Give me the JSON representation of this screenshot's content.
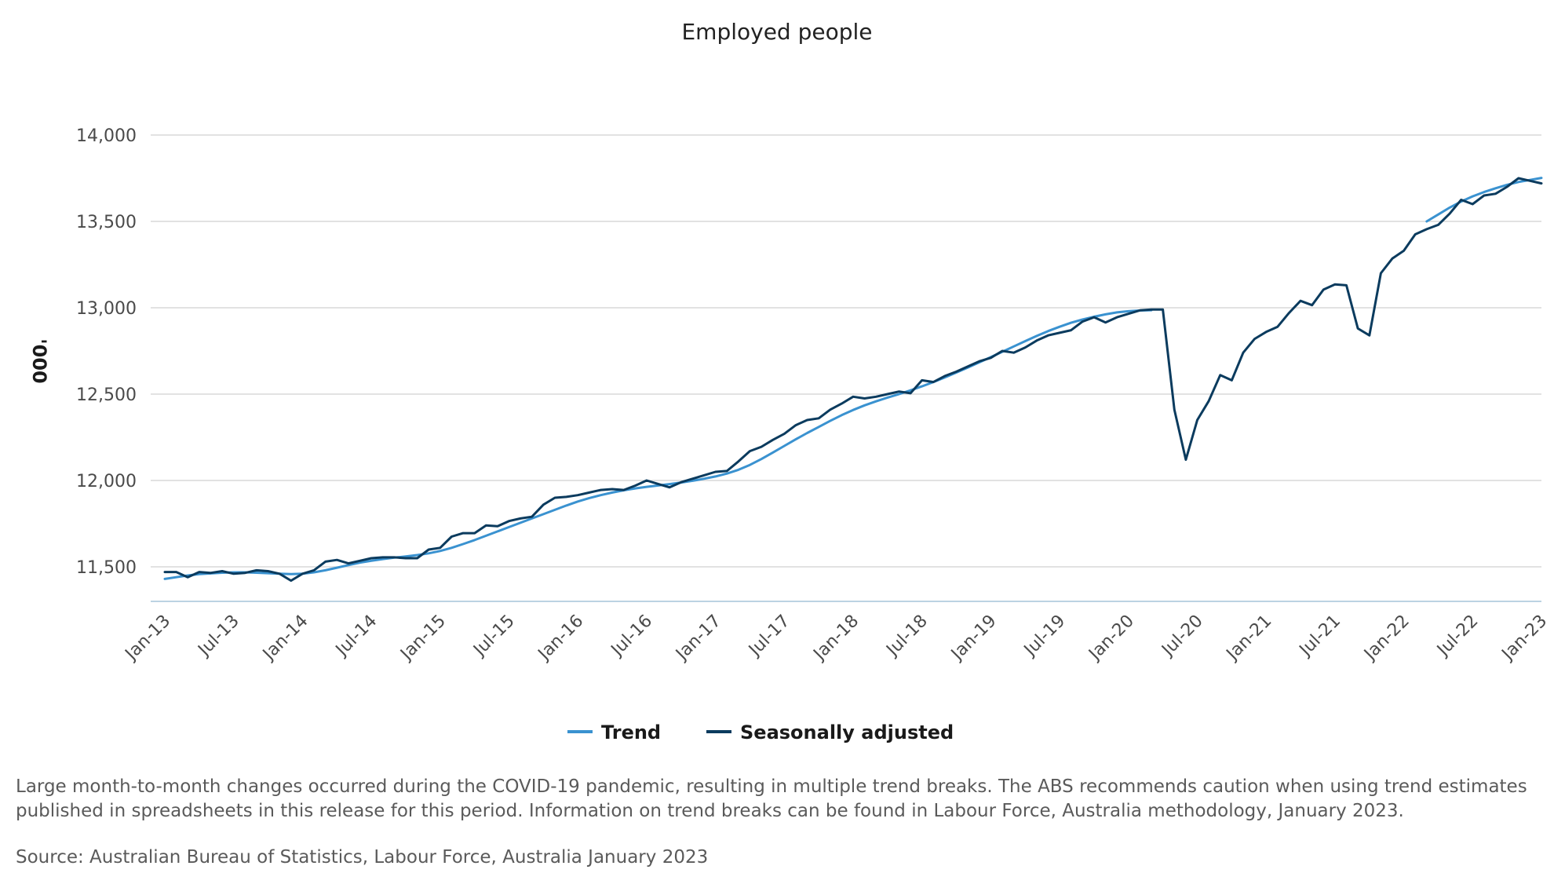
{
  "chart_data": {
    "type": "line",
    "title": "Employed people",
    "xlabel": "",
    "ylabel": "'000",
    "ylim": [
      11300,
      14200
    ],
    "yticks": [
      11500,
      12000,
      12500,
      13000,
      13500,
      14000
    ],
    "ytick_labels": [
      "11,500",
      "12,000",
      "12,500",
      "13,000",
      "13,500",
      "14,000"
    ],
    "x_range": [
      "2013-01",
      "2023-01"
    ],
    "xtick_labels": [
      "Jan-13",
      "Jul-13",
      "Jan-14",
      "Jul-14",
      "Jan-15",
      "Jul-15",
      "Jan-16",
      "Jul-16",
      "Jan-17",
      "Jul-17",
      "Jan-18",
      "Jul-18",
      "Jan-19",
      "Jul-19",
      "Jan-20",
      "Jul-20",
      "Jan-21",
      "Jul-21",
      "Jan-22",
      "Jul-22",
      "Jan-23"
    ],
    "grid": true,
    "legend_position": "bottom",
    "series": [
      {
        "name": "Trend",
        "color": "#3a92d0",
        "segments": [
          {
            "x": [
              "2013-01",
              "2013-02",
              "2013-03",
              "2013-04",
              "2013-05",
              "2013-06",
              "2013-07",
              "2013-08",
              "2013-09",
              "2013-10",
              "2013-11",
              "2013-12",
              "2014-01",
              "2014-02",
              "2014-03",
              "2014-04",
              "2014-05",
              "2014-06",
              "2014-07",
              "2014-08",
              "2014-09",
              "2014-10",
              "2014-11",
              "2014-12",
              "2015-01",
              "2015-02",
              "2015-03",
              "2015-04",
              "2015-05",
              "2015-06",
              "2015-07",
              "2015-08",
              "2015-09",
              "2015-10",
              "2015-11",
              "2015-12",
              "2016-01",
              "2016-02",
              "2016-03",
              "2016-04",
              "2016-05",
              "2016-06",
              "2016-07",
              "2016-08",
              "2016-09",
              "2016-10",
              "2016-11",
              "2016-12",
              "2017-01",
              "2017-02",
              "2017-03",
              "2017-04",
              "2017-05",
              "2017-06",
              "2017-07",
              "2017-08",
              "2017-09",
              "2017-10",
              "2017-11",
              "2017-12",
              "2018-01",
              "2018-02",
              "2018-03",
              "2018-04",
              "2018-05",
              "2018-06",
              "2018-07",
              "2018-08",
              "2018-09",
              "2018-10",
              "2018-11",
              "2018-12",
              "2019-01",
              "2019-02",
              "2019-03",
              "2019-04",
              "2019-05",
              "2019-06",
              "2019-07",
              "2019-08",
              "2019-09",
              "2019-10",
              "2019-11",
              "2019-12",
              "2020-01",
              "2020-02",
              "2020-03"
            ],
            "y": [
              11430,
              11440,
              11450,
              11458,
              11462,
              11466,
              11468,
              11468,
              11466,
              11463,
              11460,
              11458,
              11460,
              11468,
              11480,
              11495,
              11510,
              11524,
              11535,
              11545,
              11553,
              11560,
              11568,
              11578,
              11592,
              11610,
              11632,
              11655,
              11680,
              11705,
              11730,
              11755,
              11780,
              11805,
              11830,
              11855,
              11878,
              11898,
              11915,
              11930,
              11943,
              11954,
              11963,
              11971,
              11979,
              11988,
              11998,
              12010,
              12023,
              12040,
              12062,
              12090,
              12124,
              12162,
              12200,
              12238,
              12275,
              12310,
              12345,
              12378,
              12408,
              12435,
              12458,
              12480,
              12500,
              12522,
              12545,
              12570,
              12597,
              12625,
              12654,
              12684,
              12714,
              12745,
              12776,
              12807,
              12837,
              12865,
              12890,
              12913,
              12932,
              12948,
              12962,
              12973,
              12980,
              12984,
              12986
            ]
          },
          {
            "x": [
              "2022-03",
              "2022-04",
              "2022-05",
              "2022-06",
              "2022-07",
              "2022-08",
              "2022-09",
              "2022-10",
              "2022-11",
              "2022-12",
              "2023-01"
            ],
            "y": [
              13500,
              13540,
              13580,
              13615,
              13645,
              13670,
              13692,
              13712,
              13728,
              13740,
              13752
            ]
          }
        ]
      },
      {
        "name": "Seasonally adjusted",
        "color": "#0b3b5e",
        "segments": [
          {
            "x": [
              "2013-01",
              "2013-02",
              "2013-03",
              "2013-04",
              "2013-05",
              "2013-06",
              "2013-07",
              "2013-08",
              "2013-09",
              "2013-10",
              "2013-11",
              "2013-12",
              "2014-01",
              "2014-02",
              "2014-03",
              "2014-04",
              "2014-05",
              "2014-06",
              "2014-07",
              "2014-08",
              "2014-09",
              "2014-10",
              "2014-11",
              "2014-12",
              "2015-01",
              "2015-02",
              "2015-03",
              "2015-04",
              "2015-05",
              "2015-06",
              "2015-07",
              "2015-08",
              "2015-09",
              "2015-10",
              "2015-11",
              "2015-12",
              "2016-01",
              "2016-02",
              "2016-03",
              "2016-04",
              "2016-05",
              "2016-06",
              "2016-07",
              "2016-08",
              "2016-09",
              "2016-10",
              "2016-11",
              "2016-12",
              "2017-01",
              "2017-02",
              "2017-03",
              "2017-04",
              "2017-05",
              "2017-06",
              "2017-07",
              "2017-08",
              "2017-09",
              "2017-10",
              "2017-11",
              "2017-12",
              "2018-01",
              "2018-02",
              "2018-03",
              "2018-04",
              "2018-05",
              "2018-06",
              "2018-07",
              "2018-08",
              "2018-09",
              "2018-10",
              "2018-11",
              "2018-12",
              "2019-01",
              "2019-02",
              "2019-03",
              "2019-04",
              "2019-05",
              "2019-06",
              "2019-07",
              "2019-08",
              "2019-09",
              "2019-10",
              "2019-11",
              "2019-12",
              "2020-01",
              "2020-02",
              "2020-03",
              "2020-04",
              "2020-05",
              "2020-06",
              "2020-07",
              "2020-08",
              "2020-09",
              "2020-10",
              "2020-11",
              "2020-12",
              "2021-01",
              "2021-02",
              "2021-03",
              "2021-04",
              "2021-05",
              "2021-06",
              "2021-07",
              "2021-08",
              "2021-09",
              "2021-10",
              "2021-11",
              "2021-12",
              "2022-01",
              "2022-02",
              "2022-03",
              "2022-04",
              "2022-05",
              "2022-06",
              "2022-07",
              "2022-08",
              "2022-09",
              "2022-10",
              "2022-11",
              "2022-12",
              "2023-01"
            ],
            "y": [
              11470,
              11470,
              11440,
              11470,
              11465,
              11475,
              11460,
              11465,
              11480,
              11475,
              11460,
              11420,
              11460,
              11480,
              11530,
              11540,
              11520,
              11535,
              11550,
              11555,
              11555,
              11550,
              11550,
              11600,
              11610,
              11675,
              11695,
              11695,
              11740,
              11735,
              11765,
              11780,
              11790,
              11860,
              11900,
              11905,
              11915,
              11930,
              11945,
              11950,
              11945,
              11970,
              12000,
              11980,
              11960,
              11990,
              12010,
              12030,
              12050,
              12055,
              12110,
              12170,
              12195,
              12235,
              12270,
              12320,
              12350,
              12360,
              12410,
              12445,
              12485,
              12475,
              12485,
              12500,
              12515,
              12505,
              12580,
              12570,
              12605,
              12630,
              12660,
              12690,
              12710,
              12750,
              12740,
              12770,
              12810,
              12840,
              12855,
              12870,
              12920,
              12945,
              12915,
              12945,
              12965,
              12985,
              12990,
              12990,
              12410,
              12120,
              12350,
              12460,
              12610,
              12580,
              12740,
              12820,
              12860,
              12890,
              12970,
              13040,
              13015,
              13105,
              13135,
              13130,
              12880,
              12840,
              13200,
              13285,
              13330,
              13425,
              13455,
              13480,
              13545,
              13625,
              13600,
              13650,
              13660,
              13700,
              13750,
              13735,
              13720
            ]
          }
        ]
      }
    ]
  },
  "legend": {
    "trend_label": "Trend",
    "sa_label": "Seasonally adjusted"
  },
  "footnotes": {
    "note": "Large month-to-month changes occurred during the COVID-19 pandemic, resulting in multiple trend breaks. The ABS recommends caution when using trend estimates published in spreadsheets in this release for this period. Information on trend breaks can be found in Labour Force, Australia methodology, January 2023.",
    "source": "Source: Australian Bureau of Statistics, Labour Force, Australia January 2023"
  },
  "colors": {
    "trend": "#3a92d0",
    "seasonally_adjusted": "#0b3b5e",
    "gridline": "#d9d9d9",
    "baseline": "#bcd3e2"
  }
}
